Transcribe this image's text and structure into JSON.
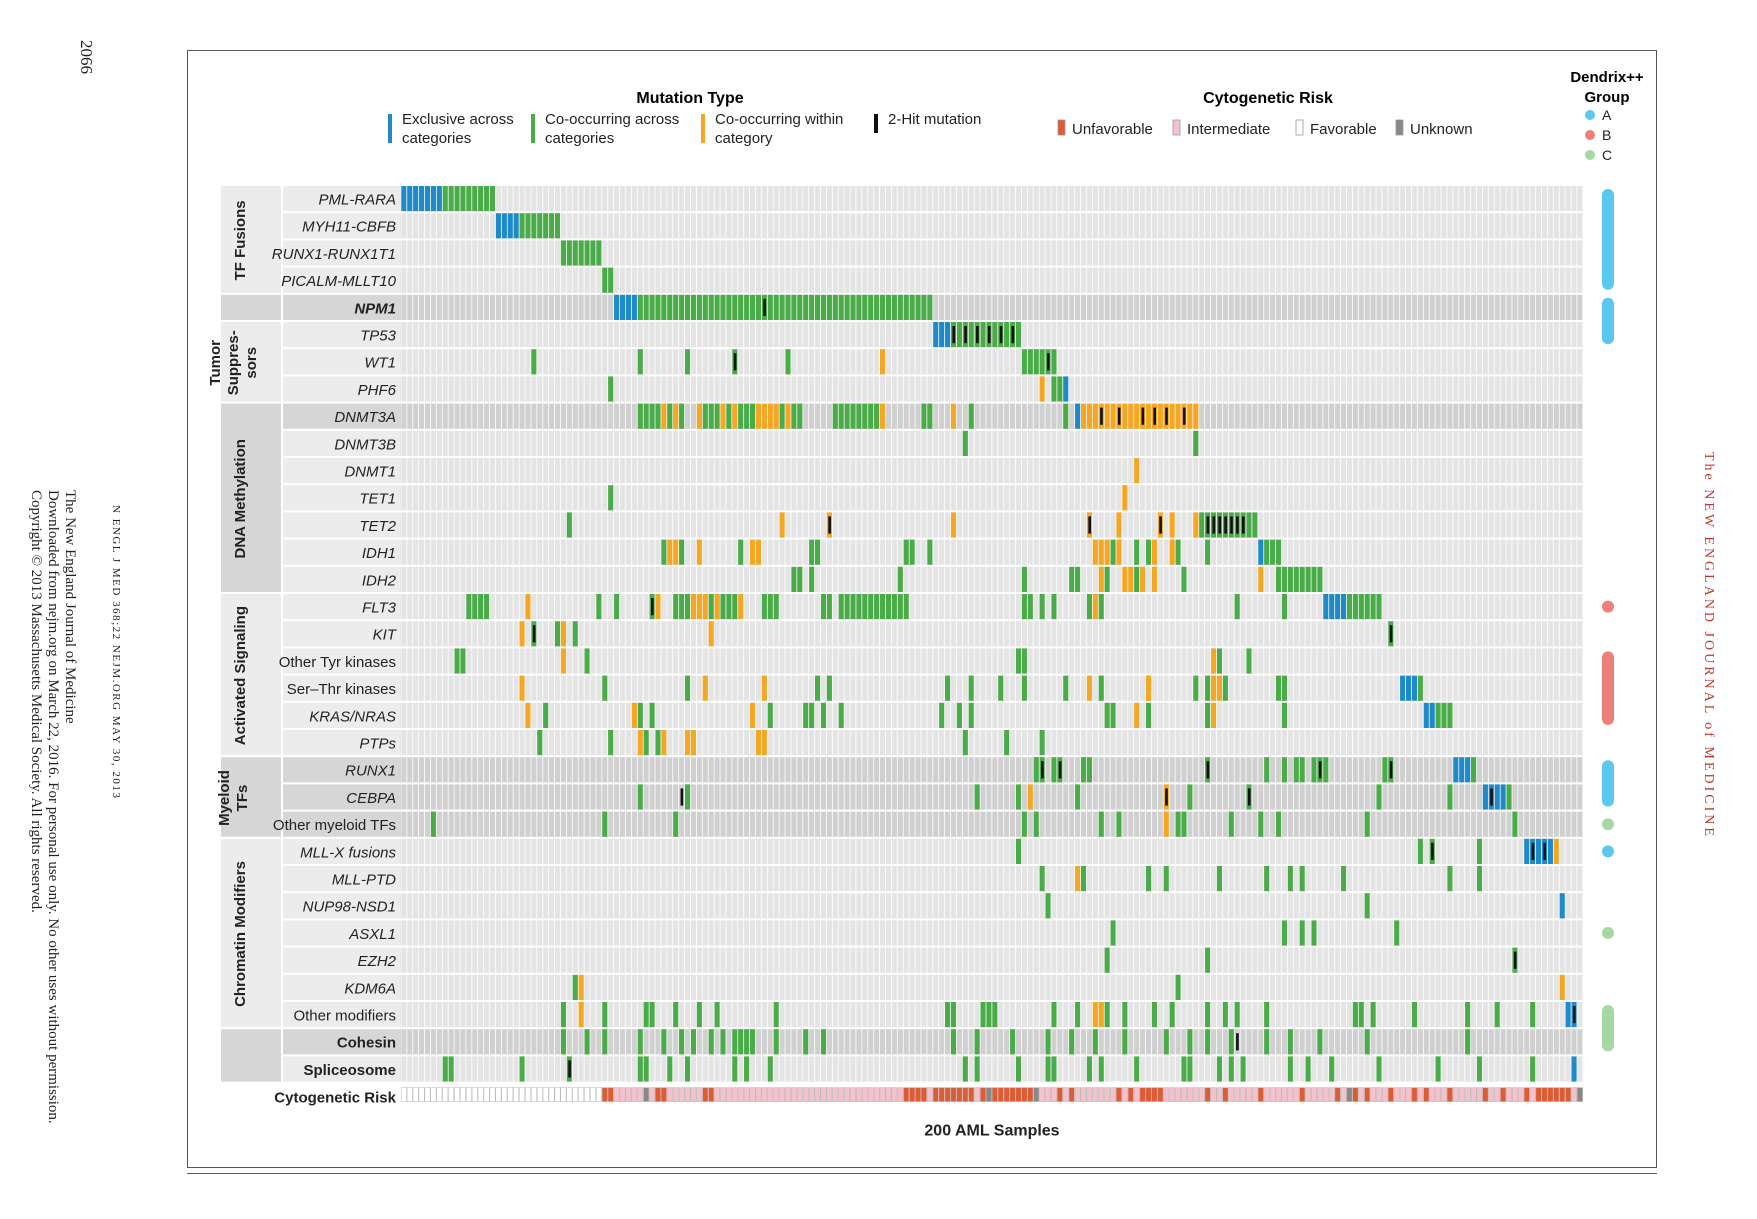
{
  "page": {
    "page_number": "2066",
    "journal_citation": "N ENGL J MED 368;22    NEJM.ORG    MAY 30, 2013",
    "download_notice": [
      "The New England Journal of Medicine",
      "Downloaded from nejm.org on March 22, 2016. For personal use only. No other uses without permission.",
      "Copyright © 2013 Massachusetts Medical Society. All rights reserved."
    ],
    "journal_brand": "The NEW ENGLAND JOURNAL of MEDICINE"
  },
  "legend": {
    "mutation_type_title": "Mutation Type",
    "mutation_types": [
      {
        "lines": [
          "Exclusive across",
          "categories"
        ],
        "color": "#1f8ac9"
      },
      {
        "lines": [
          "Co-occurring across",
          "categories"
        ],
        "color": "#4aac48"
      },
      {
        "lines": [
          "Co-occurring  within",
          "category"
        ],
        "color": "#f5a623"
      },
      {
        "lines": [
          "2-Hit mutation"
        ],
        "color": "#111111"
      }
    ],
    "cytogenetic_title": "Cytogenetic Risk",
    "cytogenetic": [
      {
        "label": "Unfavorable",
        "color": "#e05a33"
      },
      {
        "label": "Intermediate",
        "color": "#f4c2cc"
      },
      {
        "label": "Favorable",
        "color": "#ffffff"
      },
      {
        "label": "Unknown",
        "color": "#888888"
      }
    ],
    "dendrix_title": [
      "Dendrix++",
      "Group"
    ],
    "dendrix": [
      {
        "label": "A",
        "color": "#5bc8ef"
      },
      {
        "label": "B",
        "color": "#f07f7a"
      },
      {
        "label": "C",
        "color": "#a6d8a3"
      }
    ]
  },
  "chart_data": {
    "type": "heatmap",
    "title": "",
    "xlabel": "200 AML Samples",
    "n_samples": 200,
    "category_groups": [
      {
        "label": [
          "TF Fusions"
        ],
        "rows": [
          0,
          3
        ]
      },
      {
        "label": [
          ""
        ],
        "rows": [
          4,
          4
        ]
      },
      {
        "label": [
          "Tumor",
          "Suppres-",
          "sors"
        ],
        "rows": [
          5,
          7
        ]
      },
      {
        "label": [
          "DNA Methylation"
        ],
        "rows": [
          8,
          14
        ]
      },
      {
        "label": [
          "Activated Signaling"
        ],
        "rows": [
          15,
          20
        ]
      },
      {
        "label": [
          "Myeloid",
          "TFs"
        ],
        "rows": [
          21,
          23
        ]
      },
      {
        "label": [
          "Chromatin Modifiers"
        ],
        "rows": [
          24,
          30
        ]
      },
      {
        "label": [
          ""
        ],
        "rows": [
          31,
          32
        ]
      }
    ],
    "rows": [
      {
        "label": "PML-RARA",
        "italic": true,
        "bold": false,
        "shade": "light",
        "exclusive": [
          [
            0,
            6
          ]
        ],
        "cooccur": [
          [
            7,
            15
          ]
        ],
        "within": [],
        "twohit": []
      },
      {
        "label": "MYH11-CBFB",
        "italic": true,
        "bold": false,
        "shade": "light",
        "exclusive": [
          [
            16,
            19
          ]
        ],
        "cooccur": [
          [
            20,
            26
          ]
        ],
        "within": [],
        "twohit": []
      },
      {
        "label": "RUNX1-RUNX1T1",
        "italic": true,
        "bold": false,
        "shade": "light",
        "exclusive": [],
        "cooccur": [
          [
            27,
            33
          ]
        ],
        "within": [],
        "twohit": []
      },
      {
        "label": "PICALM-MLLT10",
        "italic": true,
        "bold": false,
        "shade": "light",
        "exclusive": [],
        "cooccur": [
          [
            34,
            35
          ]
        ],
        "within": [],
        "twohit": []
      },
      {
        "label": "NPM1",
        "italic": true,
        "bold": true,
        "shade": "dark",
        "exclusive": [
          [
            36,
            39
          ]
        ],
        "cooccur": [
          [
            40,
            89
          ]
        ],
        "within": [],
        "twohit": [
          61
        ]
      },
      {
        "label": "TP53",
        "italic": true,
        "bold": false,
        "shade": "light",
        "exclusive": [
          [
            90,
            92
          ]
        ],
        "cooccur": [
          [
            93,
            104
          ]
        ],
        "within": [],
        "twohit": [
          93,
          95,
          97,
          99,
          101,
          103
        ]
      },
      {
        "label": "WT1",
        "italic": true,
        "bold": false,
        "shade": "light",
        "exclusive": [],
        "cooccur": [
          22,
          40,
          48,
          56,
          65,
          105,
          106,
          107,
          108,
          109,
          110
        ],
        "within": [
          81
        ],
        "twohit": [
          56,
          109
        ]
      },
      {
        "label": "PHF6",
        "italic": true,
        "bold": false,
        "shade": "light",
        "exclusive": [
          112
        ],
        "cooccur": [
          35,
          110,
          111
        ],
        "within": [
          108
        ],
        "twohit": []
      },
      {
        "label": "DNMT3A",
        "italic": true,
        "bold": false,
        "shade": "dark",
        "exclusive": [
          114
        ],
        "cooccur": [
          [
            40,
            43
          ],
          45,
          47,
          51,
          52,
          53,
          55,
          57,
          58,
          59,
          64,
          66,
          67,
          [
            73,
            80
          ],
          88,
          89,
          96,
          112
        ],
        "within": [
          44,
          46,
          50,
          54,
          56,
          60,
          61,
          62,
          63,
          65,
          81,
          93,
          [
            115,
            134
          ]
        ],
        "twohit": [
          118,
          121,
          125,
          127,
          129,
          132
        ]
      },
      {
        "label": "DNMT3B",
        "italic": true,
        "bold": false,
        "shade": "light",
        "exclusive": [],
        "cooccur": [
          95,
          134
        ],
        "within": [],
        "twohit": []
      },
      {
        "label": "DNMT1",
        "italic": true,
        "bold": false,
        "shade": "light",
        "exclusive": [],
        "cooccur": [],
        "within": [
          124
        ],
        "twohit": []
      },
      {
        "label": "TET1",
        "italic": true,
        "bold": false,
        "shade": "light",
        "exclusive": [],
        "cooccur": [
          35
        ],
        "within": [
          122
        ],
        "twohit": []
      },
      {
        "label": "TET2",
        "italic": true,
        "bold": false,
        "shade": "light",
        "exclusive": [],
        "cooccur": [
          28,
          [
            135,
            144
          ]
        ],
        "within": [
          64,
          72,
          93,
          116,
          121,
          128,
          130,
          134
        ],
        "twohit": [
          72,
          116,
          128,
          [
            136,
            142
          ]
        ]
      },
      {
        "label": "IDH1",
        "italic": true,
        "bold": false,
        "shade": "light",
        "exclusive": [
          145
        ],
        "cooccur": [
          44,
          47,
          57,
          69,
          70,
          85,
          86,
          89,
          120,
          124,
          126,
          131,
          136,
          146,
          147,
          148
        ],
        "within": [
          45,
          46,
          50,
          59,
          60,
          117,
          118,
          119,
          121,
          127,
          130
        ],
        "twohit": []
      },
      {
        "label": "IDH2",
        "italic": true,
        "bold": false,
        "shade": "light",
        "exclusive": [],
        "cooccur": [
          66,
          67,
          69,
          84,
          105,
          113,
          114,
          119,
          124,
          132,
          [
            148,
            155
          ]
        ],
        "within": [
          118,
          122,
          123,
          125,
          127,
          145
        ],
        "twohit": []
      },
      {
        "label": "FLT3",
        "italic": true,
        "bold": false,
        "shade": "light",
        "exclusive": [
          [
            156,
            159
          ]
        ],
        "cooccur": [
          11,
          12,
          13,
          14,
          33,
          36,
          42,
          46,
          47,
          48,
          [
            52,
            56
          ],
          61,
          62,
          63,
          71,
          72,
          [
            74,
            85
          ],
          105,
          106,
          108,
          110,
          116,
          118,
          141,
          149,
          [
            160,
            165
          ]
        ],
        "within": [
          21,
          43,
          49,
          50,
          51,
          53,
          57,
          117
        ],
        "twohit": [
          42
        ]
      },
      {
        "label": "KIT",
        "italic": true,
        "bold": false,
        "shade": "light",
        "exclusive": [],
        "cooccur": [
          22,
          26,
          29,
          167
        ],
        "within": [
          20,
          27,
          52
        ],
        "twohit": [
          22,
          167
        ]
      },
      {
        "label": "Other Tyr kinases",
        "italic": false,
        "bold": false,
        "shade": "light",
        "exclusive": [],
        "cooccur": [
          9,
          10,
          31,
          104,
          105,
          138,
          143
        ],
        "within": [
          27,
          137
        ],
        "twohit": []
      },
      {
        "label": "Ser–Thr kinases",
        "italic": false,
        "bold": false,
        "shade": "light",
        "exclusive": [
          [
            169,
            171
          ]
        ],
        "cooccur": [
          34,
          48,
          70,
          72,
          92,
          96,
          101,
          105,
          112,
          118,
          126,
          134,
          136,
          139,
          148,
          149,
          172
        ],
        "within": [
          20,
          51,
          61,
          116,
          126,
          137,
          138
        ],
        "twohit": []
      },
      {
        "label": "KRAS/NRAS",
        "italic": true,
        "bold": false,
        "shade": "light",
        "exclusive": [
          [
            173,
            174
          ]
        ],
        "cooccur": [
          24,
          40,
          42,
          62,
          68,
          69,
          71,
          74,
          91,
          94,
          96,
          119,
          120,
          126,
          136,
          149,
          [
            175,
            177
          ]
        ],
        "within": [
          21,
          39,
          59,
          124,
          137
        ],
        "twohit": []
      },
      {
        "label": "PTPs",
        "italic": true,
        "bold": false,
        "shade": "light",
        "exclusive": [],
        "cooccur": [
          23,
          35,
          41,
          43,
          49,
          95,
          102,
          108
        ],
        "within": [
          40,
          44,
          48,
          49,
          60,
          61
        ],
        "twohit": []
      },
      {
        "label": "RUNX1",
        "italic": true,
        "bold": false,
        "shade": "dark",
        "exclusive": [
          [
            178,
            180
          ]
        ],
        "cooccur": [
          107,
          108,
          110,
          111,
          115,
          116,
          136,
          146,
          149,
          151,
          152,
          154,
          155,
          156,
          166,
          167,
          181
        ],
        "within": [],
        "twohit": [
          108,
          111,
          136,
          155,
          167
        ]
      },
      {
        "label": "CEBPA",
        "italic": true,
        "bold": false,
        "shade": "dark",
        "exclusive": [
          [
            183,
            186
          ]
        ],
        "cooccur": [
          40,
          48,
          97,
          104,
          114,
          133,
          143,
          165,
          177,
          187
        ],
        "within": [
          106,
          129
        ],
        "twohit": [
          47,
          129,
          143,
          184
        ]
      },
      {
        "label": "Other myeloid TFs",
        "italic": false,
        "bold": false,
        "shade": "dark",
        "exclusive": [],
        "cooccur": [
          5,
          34,
          46,
          105,
          107,
          118,
          121,
          131,
          132,
          140,
          145,
          148,
          163,
          188
        ],
        "within": [
          129
        ],
        "twohit": []
      },
      {
        "label": "MLL-X fusions",
        "italic": true,
        "bold": false,
        "shade": "light",
        "exclusive": [
          [
            190,
            194
          ]
        ],
        "cooccur": [
          104,
          172,
          174,
          182
        ],
        "within": [
          195
        ],
        "twohit": [
          191,
          193,
          174
        ]
      },
      {
        "label": "MLL-PTD",
        "italic": true,
        "bold": false,
        "shade": "light",
        "exclusive": [],
        "cooccur": [
          108,
          115,
          126,
          129,
          138,
          146,
          150,
          152,
          159,
          177,
          182
        ],
        "within": [
          114
        ],
        "twohit": []
      },
      {
        "label": "NUP98-NSD1",
        "italic": true,
        "bold": false,
        "shade": "light",
        "exclusive": [
          196
        ],
        "cooccur": [
          109,
          163
        ],
        "within": [],
        "twohit": []
      },
      {
        "label": "ASXL1",
        "italic": true,
        "bold": false,
        "shade": "light",
        "exclusive": [],
        "cooccur": [
          120,
          149,
          152,
          154,
          168
        ],
        "within": [],
        "twohit": []
      },
      {
        "label": "EZH2",
        "italic": true,
        "bold": false,
        "shade": "light",
        "exclusive": [],
        "cooccur": [
          119,
          136,
          188
        ],
        "within": [],
        "twohit": [
          188
        ]
      },
      {
        "label": "KDM6A",
        "italic": true,
        "bold": false,
        "shade": "light",
        "exclusive": [],
        "cooccur": [
          29,
          131
        ],
        "within": [
          30,
          196
        ],
        "twohit": []
      },
      {
        "label": "Other modifiers",
        "italic": false,
        "bold": false,
        "shade": "light",
        "exclusive": [
          [
            197,
            198
          ]
        ],
        "cooccur": [
          27,
          34,
          41,
          42,
          46,
          50,
          53,
          63,
          92,
          93,
          98,
          99,
          100,
          110,
          114,
          119,
          122,
          127,
          130,
          136,
          139,
          141,
          146,
          161,
          162,
          164,
          171,
          180,
          185,
          191
        ],
        "within": [
          30,
          117,
          118
        ],
        "twohit": [
          198
        ]
      },
      {
        "label": "Cohesin",
        "italic": false,
        "bold": true,
        "shade": "dark",
        "exclusive": [],
        "cooccur": [
          27,
          31,
          34,
          40,
          44,
          47,
          49,
          52,
          54,
          [
            56,
            59
          ],
          63,
          68,
          71,
          93,
          97,
          103,
          109,
          113,
          117,
          122,
          129,
          133,
          136,
          140,
          146,
          150,
          155,
          163,
          180
        ],
        "within": [],
        "twohit": [
          141
        ]
      },
      {
        "label": "Spliceosome",
        "italic": false,
        "bold": true,
        "shade": "light",
        "exclusive": [
          198
        ],
        "cooccur": [
          7,
          8,
          20,
          28,
          40,
          41,
          45,
          48,
          56,
          58,
          62,
          95,
          97,
          104,
          109,
          110,
          116,
          118,
          124,
          132,
          133,
          138,
          140,
          142,
          150,
          153,
          157,
          165,
          175,
          182,
          191
        ],
        "within": [],
        "twohit": [
          28
        ]
      }
    ],
    "cytogenetic_risk_label": "Cytogenetic Risk",
    "cytogenetic_risk": {
      "favorable": [
        [
          0,
          33
        ]
      ],
      "unfavorable": [
        [
          34,
          35
        ],
        [
          43,
          44
        ],
        [
          51,
          52
        ],
        [
          85,
          88
        ],
        [
          90,
          96
        ],
        [
          98,
          106
        ],
        111,
        113,
        121,
        123,
        [
          125,
          128
        ],
        136,
        139,
        145,
        152,
        158,
        161,
        163,
        167,
        171,
        173,
        177,
        183,
        186,
        190,
        [
          192,
          197
        ]
      ],
      "unknown": [
        41,
        99,
        107,
        160,
        199
      ],
      "intermediate_default": true
    },
    "dendrix_groups": [
      {
        "group": "A",
        "rows": [
          0,
          3
        ]
      },
      {
        "group": "A",
        "rows": [
          4,
          5
        ]
      },
      {
        "group": "B",
        "rows": [
          15,
          15
        ]
      },
      {
        "group": "B",
        "rows": [
          17,
          19
        ]
      },
      {
        "group": "A",
        "rows": [
          21,
          22
        ]
      },
      {
        "group": "C",
        "rows": [
          23,
          23
        ]
      },
      {
        "group": "A",
        "rows": [
          24,
          24
        ]
      },
      {
        "group": "C",
        "rows": [
          27,
          27
        ]
      },
      {
        "group": "C",
        "rows": [
          30,
          31
        ]
      }
    ]
  }
}
